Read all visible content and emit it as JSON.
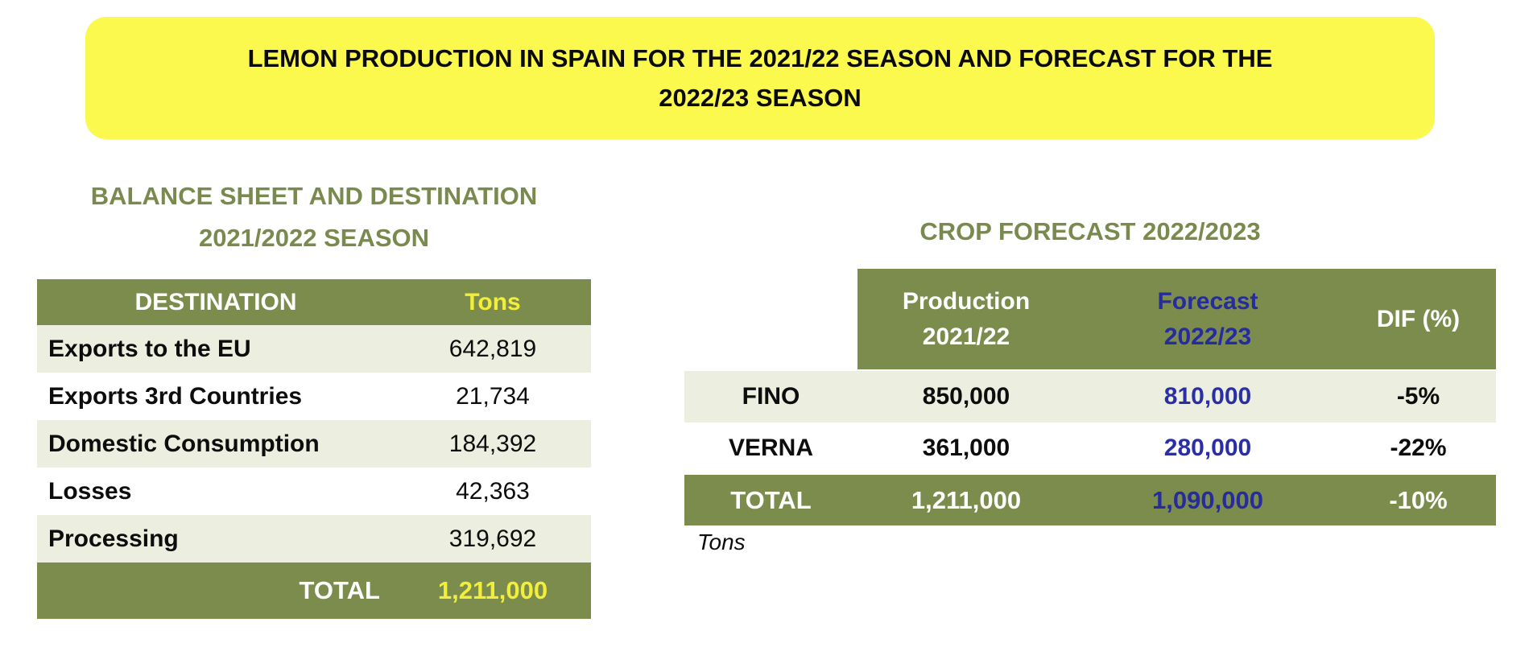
{
  "banner": {
    "title_line1": "LEMON PRODUCTION IN SPAIN FOR THE 2021/22 SEASON AND FORECAST FOR THE",
    "title_line2": "2022/23 SEASON",
    "bg_color": "#FBF94E"
  },
  "balance_sheet": {
    "heading_line1": "BALANCE SHEET AND DESTINATION",
    "heading_line2": "2021/2022 SEASON",
    "columns": {
      "destination": "DESTINATION",
      "tons": "Tons"
    },
    "rows": [
      {
        "destination": "Exports to the EU",
        "tons": "642,819"
      },
      {
        "destination": "Exports 3rd Countries",
        "tons": "21,734"
      },
      {
        "destination": "Domestic Consumption",
        "tons": "184,392"
      },
      {
        "destination": "Losses",
        "tons": "42,363"
      },
      {
        "destination": "Processing",
        "tons": "319,692"
      }
    ],
    "total": {
      "label": "TOTAL",
      "tons": "1,211,000"
    }
  },
  "crop_forecast": {
    "heading": "CROP FORECAST 2022/2023",
    "columns": {
      "production_line1": "Production",
      "production_line2": "2021/22",
      "forecast_line1": "Forecast",
      "forecast_line2": "2022/23",
      "dif": "DIF (%)"
    },
    "rows": [
      {
        "variety": "FINO",
        "production": "850,000",
        "forecast": "810,000",
        "dif": "-5%"
      },
      {
        "variety": "VERNA",
        "production": "361,000",
        "forecast": "280,000",
        "dif": "-22%"
      }
    ],
    "total": {
      "label": "TOTAL",
      "production": "1,211,000",
      "forecast": "1,090,000",
      "dif": "-10%"
    },
    "unit_note": "Tons"
  },
  "colors": {
    "olive_green": "#7C8C4D",
    "light_row": "#ECEFDF",
    "banner_yellow": "#FBF94E",
    "accent_yellow": "#F2EE3C",
    "forecast_blue": "#2B2FA6",
    "heading_olive": "#7A8A4E"
  }
}
